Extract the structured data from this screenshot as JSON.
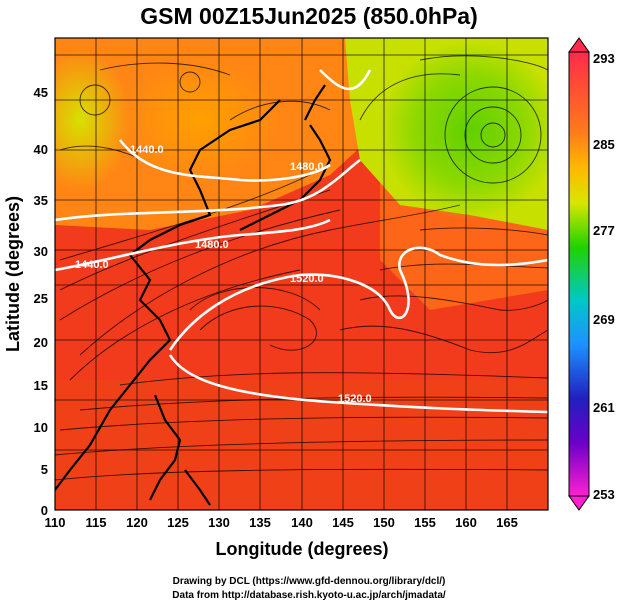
{
  "title": "GSM 00Z15Jun2025 (850.0hPa)",
  "xlabel": "Longitude (degrees)",
  "ylabel": "Latitude  (degrees)",
  "x_ticks": [
    "110",
    "115",
    "120",
    "125",
    "130",
    "135",
    "140",
    "145",
    "150",
    "155",
    "160",
    "165"
  ],
  "y_ticks": [
    "0",
    "5",
    "10",
    "15",
    "20",
    "25",
    "30",
    "35",
    "40",
    "45"
  ],
  "colorbar": {
    "labels": [
      "293",
      "285",
      "277",
      "269",
      "261",
      "253"
    ],
    "stops": [
      "#ff2a4a",
      "#ff7a1a",
      "#ffb800",
      "#d8e600",
      "#20d200",
      "#00c8c8",
      "#1e90ff",
      "#2020c0",
      "#6a00c8",
      "#ff20d0"
    ]
  },
  "contour_labels": [
    "1440.0",
    "1480.0",
    "1440.0",
    "1480.0",
    "1520.0",
    "1520.0"
  ],
  "credits": [
    "Drawing by DCL (https://www.gfd-dennou.org/library/dcl/)",
    "Data from http://database.rish.kyoto-u.ac.jp/arch/jmadata/"
  ],
  "chart_data": {
    "type": "heatmap",
    "title": "GSM 00Z15Jun2025 (850.0hPa)",
    "xlabel": "Longitude (degrees)",
    "ylabel": "Latitude  (degrees)",
    "xlim": [
      110,
      170
    ],
    "ylim": [
      0,
      50
    ],
    "colorbar_range": [
      253,
      293
    ],
    "colorbar_ticks": [
      293,
      285,
      277,
      269,
      261,
      253
    ],
    "contour_levels": [
      1440,
      1480,
      1520
    ],
    "grid": true,
    "colors": {
      "land": "#000000",
      "contour": "#ffffff",
      "streamline": "#000000"
    }
  }
}
